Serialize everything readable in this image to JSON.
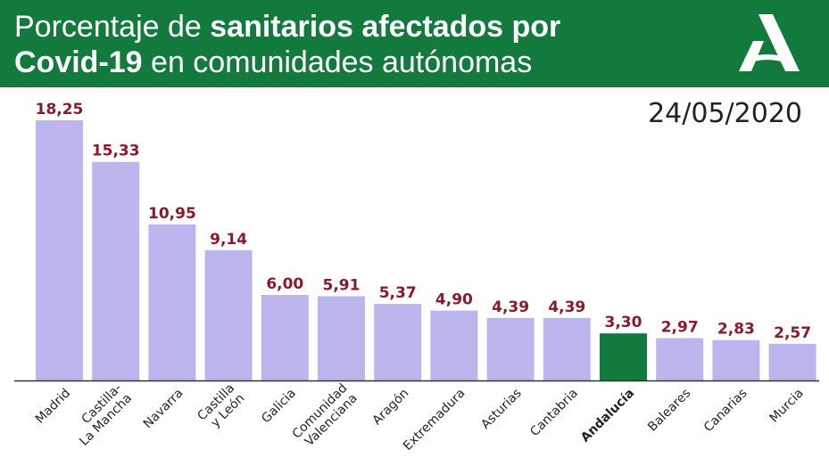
{
  "header": {
    "title_part1": "Porcentaje de ",
    "title_bold1": "sanitarios afectados por",
    "title_bold2": "Covid-19",
    "title_part2": " en comunidades autónomas",
    "logo_icon": "junta-andalucia-logo-icon"
  },
  "date": "24/05/2020",
  "colors": {
    "header_bg": "#127a3c",
    "bar": "#bdb6ee",
    "highlight_bar": "#127a3c",
    "value_label": "#8a1a2b"
  },
  "chart_data": {
    "type": "bar",
    "title": "Porcentaje de sanitarios afectados por Covid-19 en comunidades autónomas",
    "categories": [
      [
        "Madrid"
      ],
      [
        "Castilla-",
        "La Mancha"
      ],
      [
        "Navarra"
      ],
      [
        "Castilla",
        "y León"
      ],
      [
        "Galicia"
      ],
      [
        "Comunidad",
        "Valenciana"
      ],
      [
        "Aragón"
      ],
      [
        "Extremadura"
      ],
      [
        "Asturias"
      ],
      [
        "Cantabria"
      ],
      [
        "Andalucía"
      ],
      [
        "Baleares"
      ],
      [
        "Canarias"
      ],
      [
        "Murcia"
      ]
    ],
    "values": [
      18.25,
      15.33,
      10.95,
      9.14,
      6.0,
      5.91,
      5.37,
      4.9,
      4.39,
      4.39,
      3.3,
      2.97,
      2.83,
      2.57
    ],
    "value_labels": [
      "18,25",
      "15,33",
      "10,95",
      "9,14",
      "6,00",
      "5,91",
      "5,37",
      "4,90",
      "4,39",
      "4,39",
      "3,30",
      "2,97",
      "2,83",
      "2,57"
    ],
    "highlight_category": "Andalucía",
    "ylim": [
      0,
      18.25
    ],
    "grid": false,
    "xlabel": "",
    "ylabel": ""
  }
}
